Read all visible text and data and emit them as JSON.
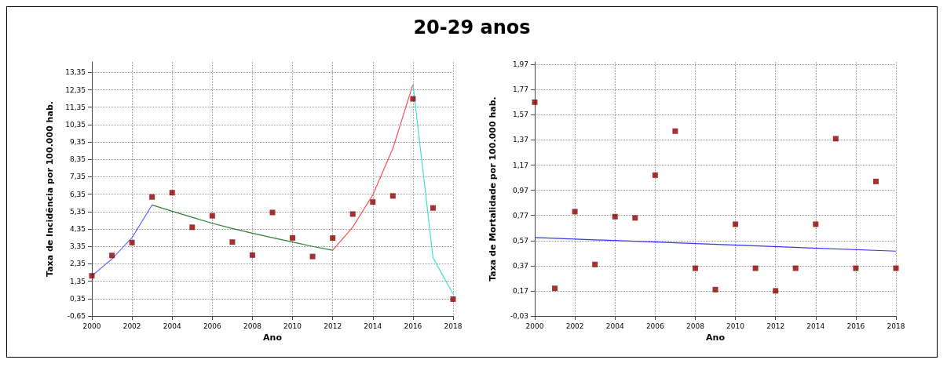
{
  "chart_data": [
    {
      "type": "scatter",
      "title": "20-29 anos",
      "xlabel": "Ano",
      "ylabel": "Taxa de Incidência por 100.000 hab.",
      "grid": true,
      "xlim": [
        2000,
        2018
      ],
      "xticks": [
        2000,
        2002,
        2004,
        2006,
        2008,
        2010,
        2012,
        2014,
        2016,
        2018
      ],
      "ylim": [
        -0.65,
        13.95
      ],
      "yticks": [
        {
          "value": -0.65,
          "label": "-0,65"
        },
        {
          "value": 0.35,
          "label": "0,35"
        },
        {
          "value": 1.35,
          "label": "1,35"
        },
        {
          "value": 2.35,
          "label": "2,35"
        },
        {
          "value": 3.35,
          "label": "3,35"
        },
        {
          "value": 4.35,
          "label": "4,35"
        },
        {
          "value": 5.35,
          "label": "5,35"
        },
        {
          "value": 6.35,
          "label": "6,35"
        },
        {
          "value": 7.35,
          "label": "7,35"
        },
        {
          "value": 8.35,
          "label": "8,35"
        },
        {
          "value": 9.35,
          "label": "9,35"
        },
        {
          "value": 10.35,
          "label": "10,35"
        },
        {
          "value": 11.35,
          "label": "11,35"
        },
        {
          "value": 12.35,
          "label": "12,35"
        },
        {
          "value": 13.35,
          "label": "13,35"
        }
      ],
      "series": [
        {
          "marker": "square",
          "color": "#8b0000",
          "x": [
            2000,
            2001,
            2002,
            2003,
            2004,
            2005,
            2006,
            2007,
            2008,
            2009,
            2010,
            2011,
            2012,
            2013,
            2014,
            2015,
            2016,
            2017,
            2018
          ],
          "values": [
            1.66,
            2.83,
            3.57,
            6.19,
            6.44,
            4.45,
            5.11,
            3.6,
            2.85,
            5.3,
            3.84,
            2.77,
            3.83,
            5.21,
            5.9,
            6.25,
            11.83,
            5.56,
            0.32
          ]
        },
        {
          "type": "line",
          "marker": "none",
          "color": "#6b6bff",
          "x": [
            2000,
            2001,
            2002,
            2003
          ],
          "values": [
            1.66,
            2.63,
            3.85,
            5.73
          ]
        },
        {
          "type": "line",
          "marker": "none",
          "color": "#2e7d32",
          "x": [
            2003,
            2004,
            2005,
            2006,
            2007,
            2008,
            2009,
            2010,
            2011,
            2012
          ],
          "values": [
            5.73,
            5.37,
            5.02,
            4.68,
            4.38,
            4.11,
            3.85,
            3.6,
            3.35,
            3.13
          ]
        },
        {
          "type": "line",
          "marker": "none",
          "color": "#ff4d4d",
          "x": [
            2012,
            2013,
            2014,
            2015,
            2016
          ],
          "values": [
            3.13,
            4.46,
            6.31,
            8.98,
            12.66
          ]
        },
        {
          "type": "line",
          "marker": "none",
          "color": "#40e0d0",
          "x": [
            2016,
            2017,
            2018
          ],
          "values": [
            12.66,
            2.7,
            0.61
          ]
        }
      ]
    },
    {
      "type": "scatter",
      "xlabel": "Ano",
      "ylabel": "Taxa de Mortalidade por 100.000 hab.",
      "grid": true,
      "xlim": [
        2000,
        2018
      ],
      "xticks": [
        2000,
        2002,
        2004,
        2006,
        2008,
        2010,
        2012,
        2014,
        2016,
        2018
      ],
      "ylim": [
        -0.03,
        1.99
      ],
      "yticks": [
        {
          "value": -0.03,
          "label": "-0,03"
        },
        {
          "value": 0.17,
          "label": "0,17"
        },
        {
          "value": 0.37,
          "label": "0,37"
        },
        {
          "value": 0.57,
          "label": "0,57"
        },
        {
          "value": 0.77,
          "label": "0,77"
        },
        {
          "value": 0.97,
          "label": "0,97"
        },
        {
          "value": 1.17,
          "label": "1,17"
        },
        {
          "value": 1.37,
          "label": "1,37"
        },
        {
          "value": 1.57,
          "label": "1,57"
        },
        {
          "value": 1.77,
          "label": "1,77"
        },
        {
          "value": 1.97,
          "label": "1,97"
        }
      ],
      "series": [
        {
          "marker": "square",
          "color": "#8b0000",
          "x": [
            2000,
            2001,
            2002,
            2003,
            2004,
            2005,
            2006,
            2007,
            2008,
            2009,
            2010,
            2011,
            2012,
            2013,
            2014,
            2015,
            2016,
            2017,
            2018
          ],
          "values": [
            1.67,
            0.19,
            0.8,
            0.38,
            0.76,
            0.75,
            1.09,
            1.44,
            0.35,
            0.18,
            0.7,
            0.35,
            0.17,
            0.35,
            0.7,
            1.38,
            0.35,
            1.04,
            0.35
          ]
        },
        {
          "type": "line",
          "marker": "none",
          "color": "#3333ff",
          "x": [
            2000,
            2018
          ],
          "values": [
            0.594,
            0.486
          ]
        }
      ]
    }
  ]
}
